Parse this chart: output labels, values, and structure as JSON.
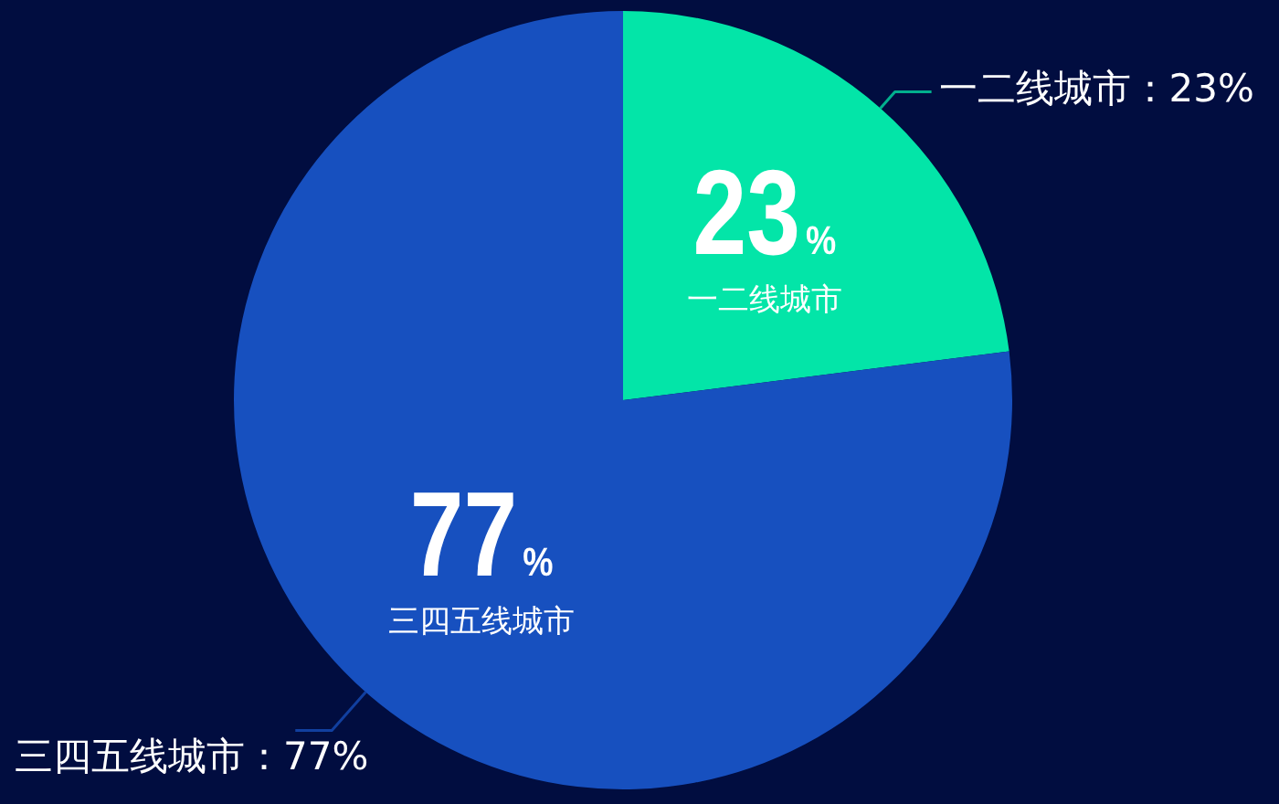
{
  "chart_data": {
    "type": "pie",
    "categories": [
      "一二线城市",
      "三四五线城市"
    ],
    "values": [
      23,
      77
    ],
    "colors": [
      "#03e5a8",
      "#1750bf"
    ],
    "value_labels": [
      "23%",
      "77%"
    ],
    "annotations": [
      "一二线城市：23%",
      "三四五线城市：77%"
    ]
  }
}
